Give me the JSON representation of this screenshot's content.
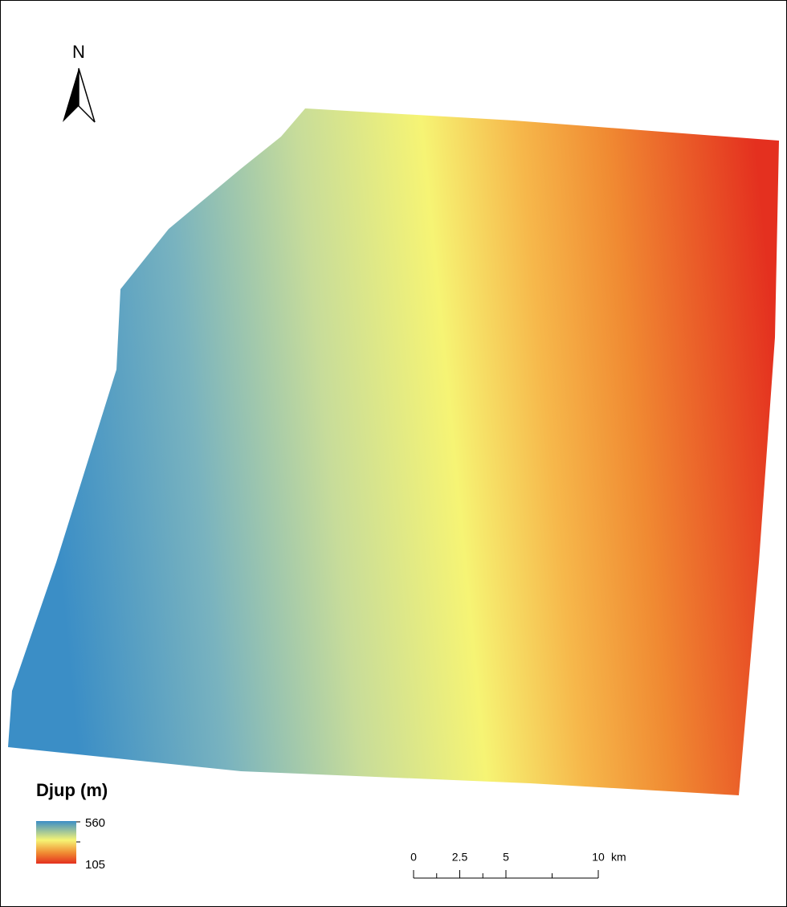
{
  "north_arrow": {
    "label": "N"
  },
  "legend": {
    "title": "Djup (m)",
    "high": 560,
    "low": 105
  },
  "scale_bar": {
    "ticks": [
      0,
      2.5,
      5,
      10
    ],
    "unit": "km"
  }
}
